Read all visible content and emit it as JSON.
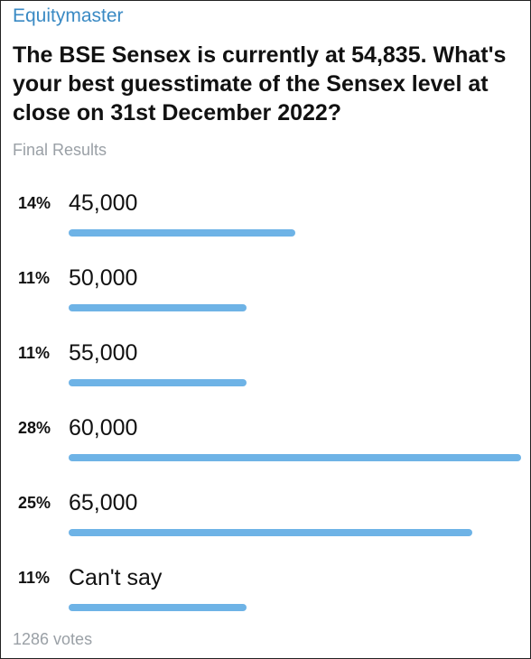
{
  "poll": {
    "channel": "Equitymaster",
    "question": "The BSE Sensex is currently at 54,835. What's your best guesstimate of the Sensex level at close on 31st December 2022?",
    "status": "Final Results",
    "votes": "1286 votes",
    "bar_color": "#6eb3e6",
    "options": [
      {
        "percent": "14%",
        "label": "45,000",
        "fill": 0.5
      },
      {
        "percent": "11%",
        "label": "50,000",
        "fill": 0.393
      },
      {
        "percent": "11%",
        "label": "55,000",
        "fill": 0.393
      },
      {
        "percent": "28%",
        "label": "60,000",
        "fill": 1.0
      },
      {
        "percent": "25%",
        "label": "65,000",
        "fill": 0.893
      },
      {
        "percent": "11%",
        "label": "Can't say",
        "fill": 0.393
      }
    ]
  }
}
